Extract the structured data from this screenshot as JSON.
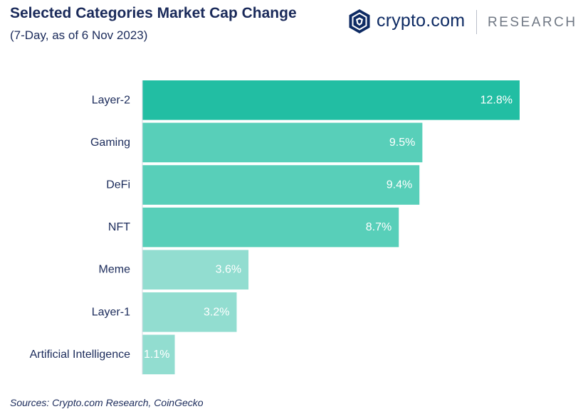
{
  "header": {
    "title": "Selected Categories Market Cap Change",
    "subtitle": "(7-Day, as of 6 Nov 2023)"
  },
  "brand": {
    "name": "crypto.com",
    "division": "RESEARCH",
    "icon": "crypto-com-lion-shield-icon",
    "color": "#0d2a63"
  },
  "footer": {
    "source": "Sources: Crypto.com Research, CoinGecko"
  },
  "chart_data": {
    "type": "bar",
    "orientation": "horizontal",
    "title": "Selected Categories Market Cap Change",
    "subtitle": "(7-Day, as of 6 Nov 2023)",
    "categories": [
      "Layer-2",
      "Gaming",
      "DeFi",
      "NFT",
      "Meme",
      "Layer-1",
      "Artificial Intelligence"
    ],
    "values": [
      12.8,
      9.5,
      9.4,
      8.7,
      3.6,
      3.2,
      1.1
    ],
    "data_labels": [
      "12.8%",
      "9.5%",
      "9.4%",
      "8.7%",
      "3.6%",
      "3.2%",
      "1.1%"
    ],
    "bar_colors": [
      "#22bea3",
      "#58cfb9",
      "#58cfb9",
      "#58cfb9",
      "#92ddd0",
      "#92ddd0",
      "#92ddd0"
    ],
    "xlim": [
      0,
      12.8
    ],
    "grid": false,
    "legend": "none"
  }
}
